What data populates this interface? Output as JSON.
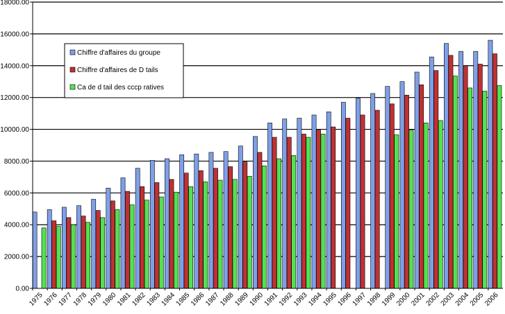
{
  "chart_data": {
    "type": "bar",
    "title": "",
    "xlabel": "",
    "ylabel": "",
    "ylim": [
      0,
      18000
    ],
    "yticks": [
      0,
      2000,
      4000,
      6000,
      8000,
      10000,
      12000,
      14000,
      16000,
      18000
    ],
    "ytick_labels": [
      "0.00",
      "2000.00",
      "4000.00",
      "6000.00",
      "8000.00",
      "10000.00",
      "12000.00",
      "14000.00",
      "16000.00",
      "18000.00"
    ],
    "grid": true,
    "legend_position": "top-left",
    "categories": [
      "1975",
      "1976",
      "1977",
      "1978",
      "1979",
      "1980",
      "1981",
      "1982",
      "1983",
      "1984",
      "1985",
      "1986",
      "1987",
      "1988",
      "1989",
      "1990",
      "1991",
      "1992",
      "1993",
      "1994",
      "1995",
      "1996",
      "1997",
      "1998",
      "1999",
      "2000",
      "2001",
      "2002",
      "2003",
      "2004",
      "2005",
      "2006"
    ],
    "series": [
      {
        "name": "Chiffre d'affaires du groupe",
        "color": "#7f9fe7",
        "values": [
          4800,
          4950,
          5100,
          5200,
          5600,
          6300,
          6950,
          7550,
          8050,
          8150,
          8400,
          8450,
          8550,
          8600,
          8950,
          9550,
          10400,
          10650,
          10700,
          10900,
          11100,
          11700,
          11950,
          12250,
          12700,
          13000,
          13600,
          14550,
          15400,
          14900,
          14900,
          15600
        ]
      },
      {
        "name": "Chiffre d'affaires de D    tails",
        "color": "#c03131",
        "values": [
          null,
          4250,
          4450,
          4550,
          4900,
          5500,
          6100,
          6400,
          6650,
          6850,
          7250,
          7400,
          7550,
          7650,
          7950,
          8550,
          9500,
          9500,
          9700,
          9950,
          10150,
          10700,
          10900,
          11200,
          11600,
          12150,
          12800,
          13700,
          14650,
          14000,
          14100,
          14750
        ]
      },
      {
        "name": "Ca de d  tail des cccp  ratives",
        "color": "#52e252",
        "values": [
          3800,
          3900,
          4000,
          4150,
          4450,
          4950,
          5250,
          5550,
          5750,
          6050,
          6400,
          6700,
          6800,
          6850,
          7050,
          7700,
          8150,
          8350,
          9500,
          9700,
          null,
          null,
          null,
          null,
          9650,
          9950,
          10400,
          10550,
          13350,
          12600,
          12400,
          12750
        ]
      }
    ]
  }
}
